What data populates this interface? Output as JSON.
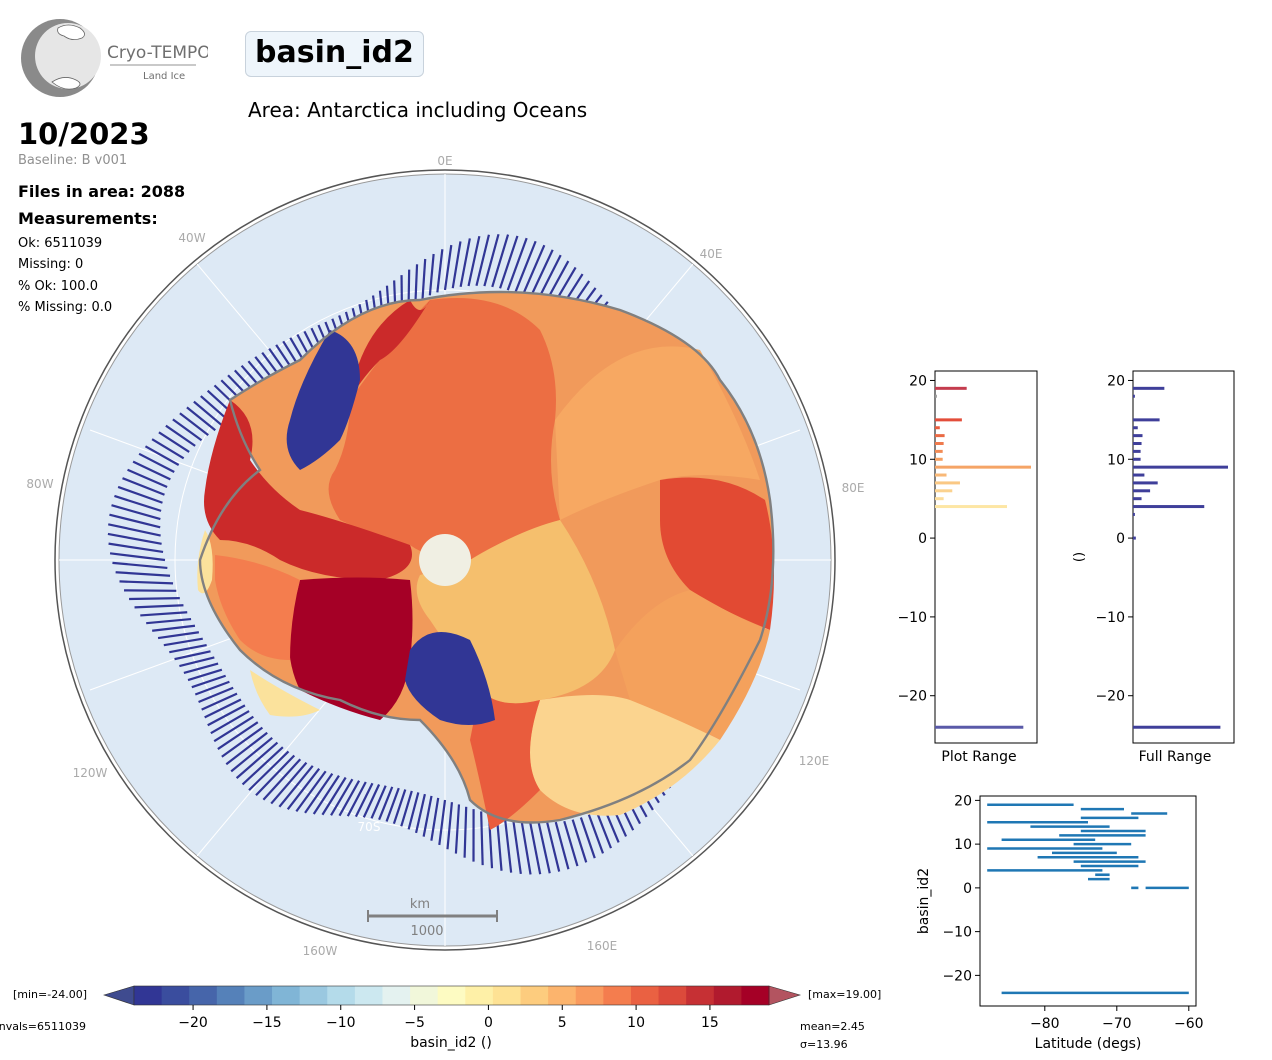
{
  "header": {
    "logo_text": "Cryo-TEMPO",
    "logo_subtext": "Land Ice",
    "parameter": "basin_id2",
    "area": "Area: Antarctica including Oceans",
    "date": "10/2023",
    "baseline": "Baseline: B v001",
    "files": "Files in area: 2088",
    "measurements_label": "Measurements:",
    "ok": "Ok: 6511039",
    "missing": "Missing: 0",
    "pct_ok": "% Ok: 100.0",
    "pct_missing": "% Missing: 0.0"
  },
  "map": {
    "longitude_labels": [
      "0E",
      "40E",
      "80E",
      "120E",
      "160E",
      "160W",
      "120W",
      "80W",
      "40W"
    ],
    "latitude_label": "70S",
    "scale_unit": "km",
    "scale_value": "1000"
  },
  "colors": {
    "ocean": "#dde9f5",
    "grid": "#b8b8b8",
    "track_blue": "#313695",
    "hist_blue": "#3f3f9a",
    "scatter": "#1f77b4",
    "pole": "#f0efe3",
    "coast": "#808080"
  },
  "chart_data": [
    {
      "type": "bar",
      "orientation": "horizontal",
      "xlabel": "Plot Range",
      "ylabel": "",
      "ylim": [
        -26,
        21.2
      ],
      "yticks": [
        20,
        10,
        0,
        -10,
        -20
      ],
      "y": [
        19,
        18,
        15,
        14,
        13,
        12,
        11,
        10,
        9,
        8,
        7,
        6,
        5,
        4,
        -24
      ],
      "values": [
        33,
        2,
        28,
        5,
        10,
        9,
        8,
        8,
        100,
        12,
        26,
        18,
        9,
        75,
        92
      ],
      "colors": [
        "#c43c4e",
        "#999",
        "#e34d3a",
        "#e95c3d",
        "#ea6a44",
        "#ef7a4d",
        "#f28b55",
        "#f59e60",
        "#f5a466",
        "#f8b877",
        "#fac884",
        "#fbd28f",
        "#fcdd9c",
        "#fde6a4",
        "#5a5aa8"
      ]
    },
    {
      "type": "bar",
      "orientation": "horizontal",
      "xlabel": "Full Range",
      "ylabel": "()",
      "ylim": [
        -26,
        21.2
      ],
      "yticks": [
        20,
        10,
        0,
        -10,
        -20
      ],
      "y": [
        19,
        18,
        15,
        14,
        13,
        12,
        11,
        10,
        9,
        8,
        7,
        6,
        5,
        4,
        3,
        0,
        -24
      ],
      "values": [
        33,
        2,
        28,
        5,
        10,
        9,
        8,
        8,
        100,
        12,
        26,
        18,
        9,
        75,
        2,
        3,
        92
      ]
    },
    {
      "type": "scatter",
      "xlabel": "Latitude (degs)",
      "ylabel": "basin_id2",
      "xlim": [
        -89,
        -59
      ],
      "ylim": [
        -27,
        21
      ],
      "xticks": [
        -80,
        -70,
        -60
      ],
      "yticks": [
        20,
        10,
        0,
        -10,
        -20
      ],
      "segments": [
        {
          "y": 19,
          "x0": -88,
          "x1": -76
        },
        {
          "y": 18,
          "x0": -75,
          "x1": -69
        },
        {
          "y": 17,
          "x0": -68,
          "x1": -63
        },
        {
          "y": 16,
          "x0": -75,
          "x1": -67
        },
        {
          "y": 15,
          "x0": -88,
          "x1": -74
        },
        {
          "y": 14,
          "x0": -82,
          "x1": -71
        },
        {
          "y": 13,
          "x0": -75,
          "x1": -66
        },
        {
          "y": 12,
          "x0": -78,
          "x1": -66
        },
        {
          "y": 11,
          "x0": -86,
          "x1": -73
        },
        {
          "y": 10,
          "x0": -76,
          "x1": -68
        },
        {
          "y": 9,
          "x0": -88,
          "x1": -72
        },
        {
          "y": 8,
          "x0": -79,
          "x1": -70
        },
        {
          "y": 7,
          "x0": -81,
          "x1": -67
        },
        {
          "y": 6,
          "x0": -76,
          "x1": -66
        },
        {
          "y": 5,
          "x0": -75,
          "x1": -67
        },
        {
          "y": 4,
          "x0": -88,
          "x1": -72
        },
        {
          "y": 3,
          "x0": -73,
          "x1": -71
        },
        {
          "y": 2,
          "x0": -74,
          "x1": -71
        },
        {
          "y": 0,
          "x0": -68,
          "x1": -67
        },
        {
          "y": 0,
          "x0": -66,
          "x1": -60
        },
        {
          "y": -24,
          "x0": -86,
          "x1": -60
        }
      ]
    },
    {
      "type": "heatmap",
      "label": "basin_id2 ()",
      "vmin": -24,
      "vmax": 19,
      "ticks": [
        -20,
        -15,
        -10,
        -5,
        0,
        5,
        10,
        15
      ],
      "min_label": "[min=-24.00]",
      "max_label": "[max=19.00]",
      "nvals_label": "nvals=6511039",
      "mean_label": "mean=2.45",
      "sigma_label": "σ=13.96",
      "palette": [
        "#313695",
        "#3a4d9e",
        "#4665aa",
        "#5581b9",
        "#6a9cc8",
        "#80b5d6",
        "#9ac8e0",
        "#b4dbea",
        "#cce8f0",
        "#e4f2f0",
        "#f1f7da",
        "#fdfbc2",
        "#fef0a7",
        "#fee294",
        "#fdcc7e",
        "#fcb46d",
        "#f99a5e",
        "#f47d4e",
        "#ea6142",
        "#dc4a3b",
        "#c63034",
        "#b11a2e",
        "#a50026"
      ]
    }
  ]
}
